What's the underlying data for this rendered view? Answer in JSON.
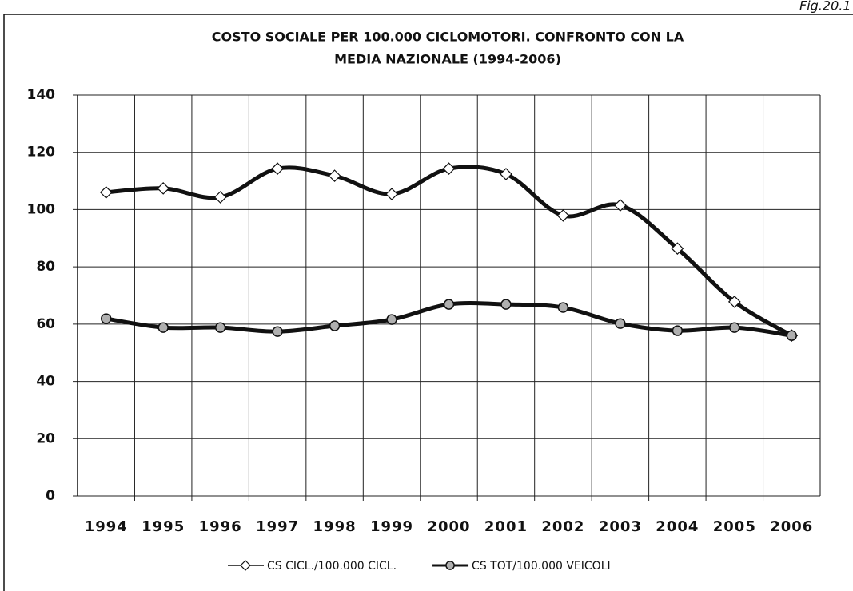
{
  "figure_label": "Fig.20.1",
  "chart_data": {
    "type": "line",
    "title": [
      "COSTO SOCIALE PER 100.000 CICLOMOTORI. CONFRONTO CON LA",
      "MEDIA NAZIONALE (1994-2006)"
    ],
    "categories": [
      "1994",
      "1995",
      "1996",
      "1997",
      "1998",
      "1999",
      "2000",
      "2001",
      "2002",
      "2003",
      "2004",
      "2005",
      "2006"
    ],
    "series": [
      {
        "name": "CS CICL./100.000 CICL.",
        "color": "#111111",
        "marker": "diamond",
        "marker_color": "#ffffff",
        "values": [
          106,
          107.4,
          104.3,
          114.3,
          111.8,
          105.4,
          114.3,
          112.4,
          97.9,
          101.5,
          86.4,
          67.8,
          56
        ]
      },
      {
        "name": "CS TOT/100.000 VEICOLI",
        "color": "#111111",
        "marker": "circle",
        "marker_color": "#b0b0b0",
        "values": [
          61.9,
          58.8,
          58.8,
          57.4,
          59.4,
          61.6,
          66.9,
          66.9,
          65.8,
          60.2,
          57.7,
          58.8,
          56
        ]
      }
    ],
    "ylim": [
      0,
      140
    ],
    "yticks": [
      0,
      20,
      40,
      60,
      80,
      100,
      120,
      140
    ],
    "grid": true,
    "legend": "bottom"
  }
}
